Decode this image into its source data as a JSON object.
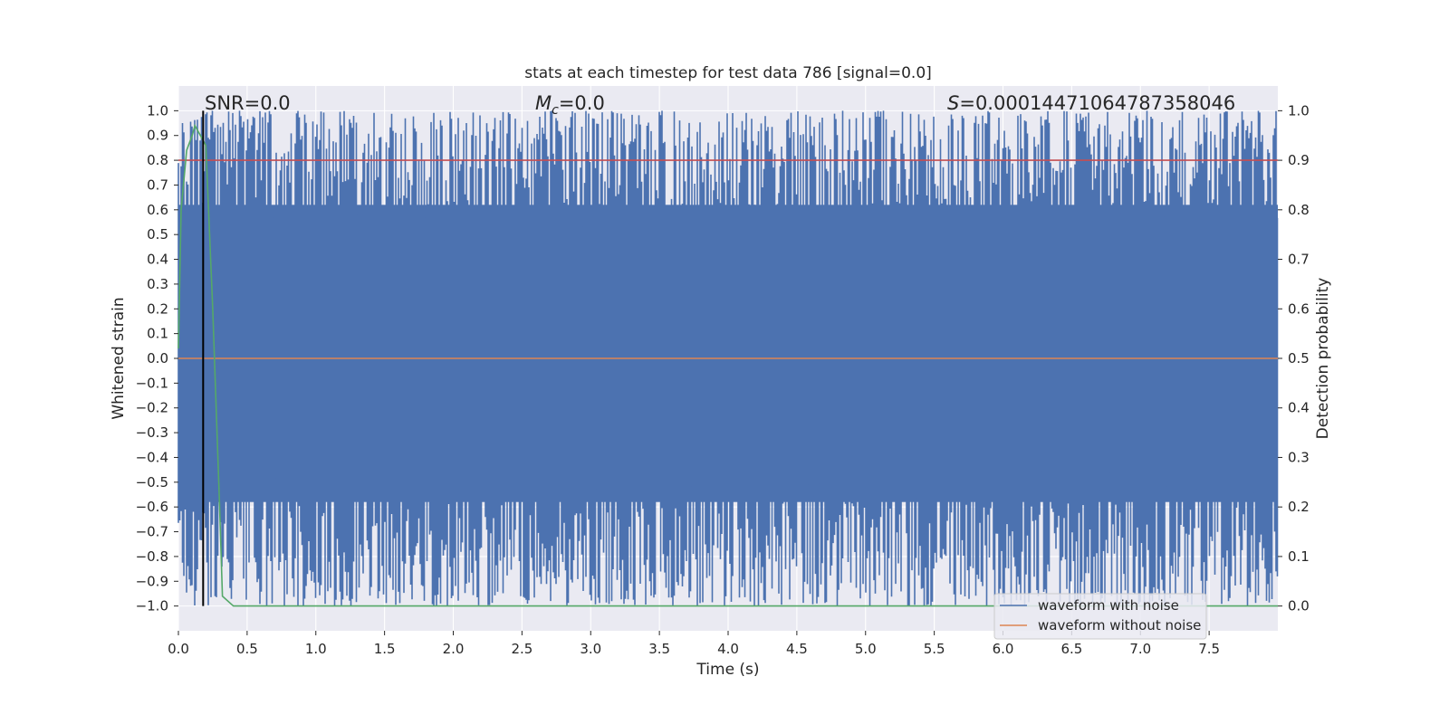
{
  "chart_data": {
    "type": "line",
    "title": "stats at each timestep for test data 786 [signal=0.0]",
    "xlabel": "Time (s)",
    "ylabel_left": "Whitened strain",
    "ylabel_right": "Detection probability",
    "xlim": [
      0.0,
      8.0
    ],
    "ylim_left": [
      -1.1,
      1.1
    ],
    "ylim_right": [
      -0.05,
      1.05
    ],
    "x_ticks": [
      "0.0",
      "0.5",
      "1.0",
      "1.5",
      "2.0",
      "2.5",
      "3.0",
      "3.5",
      "4.0",
      "4.5",
      "5.0",
      "5.5",
      "6.0",
      "6.5",
      "7.0",
      "7.5"
    ],
    "y_left_ticks": [
      "1.0",
      "0.9",
      "0.8",
      "0.7",
      "0.6",
      "0.5",
      "0.4",
      "0.3",
      "0.2",
      "0.1",
      "0.0",
      "−0.1",
      "−0.2",
      "−0.3",
      "−0.4",
      "−0.5",
      "−0.6",
      "−0.7",
      "−0.8",
      "−0.9",
      "−1.0"
    ],
    "y_right_ticks": [
      "1.0",
      "0.9",
      "0.8",
      "0.7",
      "0.6",
      "0.5",
      "0.4",
      "0.3",
      "0.2",
      "0.1",
      "0.0"
    ],
    "grid": true,
    "annotations": {
      "snr": "SNR=0.0",
      "mc_symbol": "M",
      "mc_sub": "c",
      "mc_value": "=0.0",
      "s_symbol": "S",
      "s_value": "=0.00014471064787358046"
    },
    "legend": {
      "placement": "lower right",
      "entries": [
        "waveform with noise",
        "waveform without noise"
      ]
    },
    "series": [
      {
        "name": "waveform with noise",
        "axis": "left",
        "color": "#4c72b0",
        "description": "dense noise filling approximately -1.0 to 1.0 over 0.0-8.0 s",
        "approx_range": [
          -1.0,
          1.0
        ]
      },
      {
        "name": "waveform without noise",
        "axis": "left",
        "color": "#dd8452",
        "x": [
          0.0,
          8.0
        ],
        "y": [
          0.0,
          0.0
        ]
      },
      {
        "axis": "right",
        "color": "#c44e52",
        "x": [
          0.0,
          8.0
        ],
        "y": [
          0.9,
          0.9
        ]
      },
      {
        "axis": "right",
        "color": "#55a868",
        "x": [
          0.0,
          0.02,
          0.06,
          0.1,
          0.12,
          0.16,
          0.2,
          0.25,
          0.3,
          0.32,
          0.4,
          8.0
        ],
        "y": [
          0.52,
          0.8,
          0.92,
          0.95,
          0.97,
          0.95,
          0.93,
          0.6,
          0.2,
          0.02,
          0.0,
          0.0
        ]
      }
    ],
    "vline": {
      "x": 0.18,
      "color": "#000000"
    }
  },
  "colors": {
    "axes_bg": "#eaeaf2",
    "grid": "#ffffff"
  }
}
